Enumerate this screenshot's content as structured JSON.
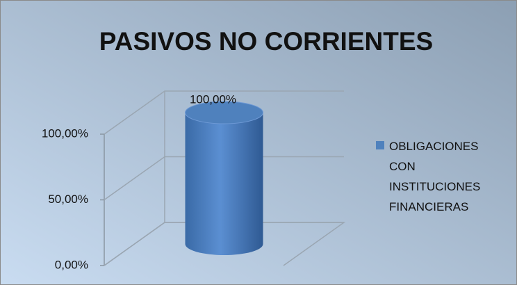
{
  "chart_data": {
    "type": "bar3d",
    "title": "PASIVOS NO CORRIENTES",
    "categories": [
      null
    ],
    "series": [
      {
        "name": "OBLIGACIONES CON INSTITUCIONES FINANCIERAS",
        "color": "#4f81bd",
        "values": [
          100
        ],
        "value_labels": [
          "100,00%"
        ]
      }
    ],
    "ylim": [
      0,
      100
    ],
    "yticks": [
      {
        "value": 0,
        "label": "0,00%"
      },
      {
        "value": 50,
        "label": "50,00%"
      },
      {
        "value": 100,
        "label": "100,00%"
      }
    ],
    "grid": true,
    "legend": "right"
  }
}
